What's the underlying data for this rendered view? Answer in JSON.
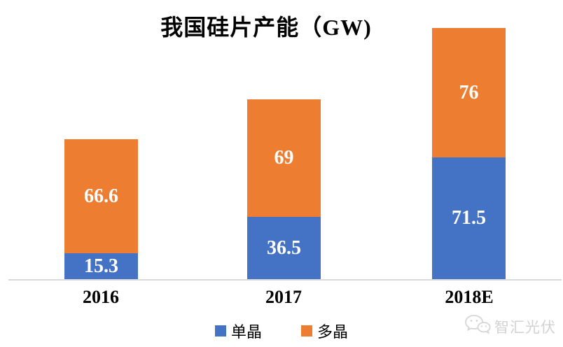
{
  "title": "我国硅片产能（GW)",
  "chart_data": {
    "type": "bar",
    "stacked": true,
    "title": "我国硅片产能（GW)",
    "categories": [
      "2016",
      "2017",
      "2018E"
    ],
    "series": [
      {
        "name": "单晶",
        "color": "#4472C4",
        "values": [
          15.3,
          36.5,
          71.5
        ]
      },
      {
        "name": "多晶",
        "color": "#ED7D31",
        "values": [
          66.6,
          69,
          76
        ]
      }
    ],
    "totals": [
      81.9,
      105.5,
      147.5
    ],
    "xlabel": "",
    "ylabel": "",
    "ylim": [
      0,
      160
    ],
    "grid": false,
    "data_labels": true,
    "data_label_color": "#FFFFFF",
    "legend_position": "bottom"
  },
  "colors": {
    "mono_blue": "#4472C4",
    "poly_orange": "#ED7D31",
    "axis_line": "#D9D9D9",
    "watermark_gray": "#D2D2D2"
  },
  "watermark": {
    "icon": "chat-bubbles-icon",
    "text": "智汇光伏"
  }
}
